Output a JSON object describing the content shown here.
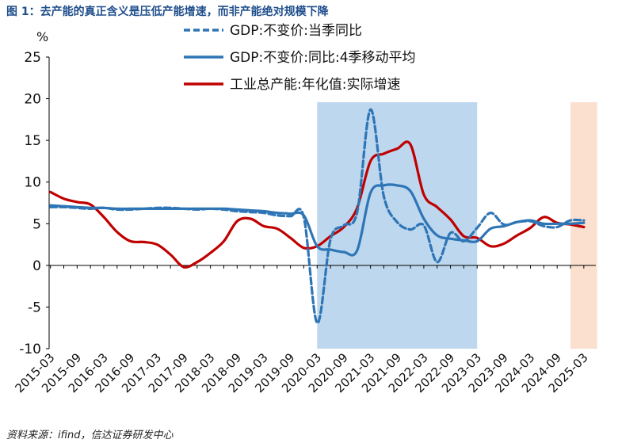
{
  "title": "图 1：去产能的真正含义是压低产能增速，而非产能绝对规模下降",
  "source": "资料来源：ifind，信达证券研发中心",
  "chart_data": {
    "type": "line",
    "ylabel": "%",
    "xlabel": "",
    "ylim": [
      -10,
      25
    ],
    "yticks": [
      -10,
      -5,
      0,
      5,
      10,
      15,
      20,
      25
    ],
    "grid": false,
    "legend_position": "top-center",
    "x_start": "2015-03",
    "x_end": "2025-03",
    "x_tick_labels": [
      "2015-03",
      "2015-09",
      "2016-03",
      "2016-09",
      "2017-03",
      "2017-09",
      "2018-03",
      "2018-09",
      "2019-03",
      "2019-09",
      "2020-03",
      "2020-09",
      "2021-03",
      "2021-09",
      "2022-03",
      "2022-09",
      "2023-03",
      "2023-09",
      "2024-03",
      "2024-09",
      "2025-03"
    ],
    "shaded_regions": [
      {
        "start": "2020-03",
        "end": "2023-03",
        "color": "#bdd7ee"
      },
      {
        "start": "2024-12",
        "end": "2025-06",
        "color": "#fbe0cf"
      }
    ],
    "series": [
      {
        "name": "GDP:不变价:当季同比",
        "style": "dashed",
        "color": "#2e75b6",
        "points": [
          [
            "2015-03",
            7.0
          ],
          [
            "2015-06",
            7.0
          ],
          [
            "2015-09",
            6.9
          ],
          [
            "2015-12",
            6.8
          ],
          [
            "2016-03",
            6.9
          ],
          [
            "2016-06",
            6.7
          ],
          [
            "2016-09",
            6.7
          ],
          [
            "2016-12",
            6.8
          ],
          [
            "2017-03",
            6.9
          ],
          [
            "2017-06",
            6.9
          ],
          [
            "2017-09",
            6.8
          ],
          [
            "2017-12",
            6.7
          ],
          [
            "2018-03",
            6.8
          ],
          [
            "2018-06",
            6.7
          ],
          [
            "2018-09",
            6.5
          ],
          [
            "2018-12",
            6.4
          ],
          [
            "2019-03",
            6.3
          ],
          [
            "2019-06",
            6.0
          ],
          [
            "2019-09",
            5.9
          ],
          [
            "2019-12",
            5.8
          ],
          [
            "2020-03",
            -6.9
          ],
          [
            "2020-06",
            3.1
          ],
          [
            "2020-09",
            4.8
          ],
          [
            "2020-12",
            6.4
          ],
          [
            "2021-03",
            18.7
          ],
          [
            "2021-06",
            8.3
          ],
          [
            "2021-09",
            5.2
          ],
          [
            "2021-12",
            4.3
          ],
          [
            "2022-03",
            4.8
          ],
          [
            "2022-06",
            0.4
          ],
          [
            "2022-09",
            3.9
          ],
          [
            "2022-12",
            2.9
          ],
          [
            "2023-03",
            4.5
          ],
          [
            "2023-06",
            6.3
          ],
          [
            "2023-09",
            4.9
          ],
          [
            "2023-12",
            5.2
          ],
          [
            "2024-03",
            5.3
          ],
          [
            "2024-06",
            4.7
          ],
          [
            "2024-09",
            4.6
          ],
          [
            "2024-12",
            5.4
          ],
          [
            "2025-03",
            5.4
          ]
        ]
      },
      {
        "name": "GDP:不变价:同比:4季移动平均",
        "style": "solid",
        "color": "#2e75b6",
        "points": [
          [
            "2015-03",
            7.2
          ],
          [
            "2015-06",
            7.1
          ],
          [
            "2015-09",
            7.0
          ],
          [
            "2015-12",
            6.9
          ],
          [
            "2016-03",
            6.9
          ],
          [
            "2016-06",
            6.8
          ],
          [
            "2016-09",
            6.8
          ],
          [
            "2016-12",
            6.8
          ],
          [
            "2017-03",
            6.8
          ],
          [
            "2017-06",
            6.8
          ],
          [
            "2017-09",
            6.8
          ],
          [
            "2017-12",
            6.8
          ],
          [
            "2018-03",
            6.8
          ],
          [
            "2018-06",
            6.8
          ],
          [
            "2018-09",
            6.7
          ],
          [
            "2018-12",
            6.6
          ],
          [
            "2019-03",
            6.5
          ],
          [
            "2019-06",
            6.3
          ],
          [
            "2019-09",
            6.2
          ],
          [
            "2019-12",
            6.0
          ],
          [
            "2020-03",
            2.3
          ],
          [
            "2020-06",
            1.9
          ],
          [
            "2020-09",
            1.6
          ],
          [
            "2020-12",
            1.8
          ],
          [
            "2021-03",
            8.7
          ],
          [
            "2021-06",
            9.6
          ],
          [
            "2021-09",
            9.6
          ],
          [
            "2021-12",
            8.9
          ],
          [
            "2022-03",
            5.6
          ],
          [
            "2022-06",
            3.6
          ],
          [
            "2022-09",
            3.2
          ],
          [
            "2022-12",
            3.0
          ],
          [
            "2023-03",
            2.9
          ],
          [
            "2023-06",
            4.4
          ],
          [
            "2023-09",
            4.7
          ],
          [
            "2023-12",
            5.2
          ],
          [
            "2024-03",
            5.4
          ],
          [
            "2024-06",
            5.0
          ],
          [
            "2024-09",
            5.0
          ],
          [
            "2024-12",
            5.0
          ],
          [
            "2025-03",
            5.1
          ]
        ]
      },
      {
        "name": "工业总产能:年化值:实际增速",
        "style": "solid",
        "color": "#c00000",
        "points": [
          [
            "2015-03",
            8.8
          ],
          [
            "2015-06",
            8.0
          ],
          [
            "2015-09",
            7.6
          ],
          [
            "2015-12",
            7.3
          ],
          [
            "2016-03",
            5.8
          ],
          [
            "2016-06",
            4.0
          ],
          [
            "2016-09",
            2.9
          ],
          [
            "2016-12",
            2.8
          ],
          [
            "2017-03",
            2.5
          ],
          [
            "2017-06",
            1.3
          ],
          [
            "2017-09",
            -0.2
          ],
          [
            "2017-12",
            0.4
          ],
          [
            "2018-03",
            1.5
          ],
          [
            "2018-06",
            2.9
          ],
          [
            "2018-09",
            5.3
          ],
          [
            "2018-12",
            5.6
          ],
          [
            "2019-03",
            4.7
          ],
          [
            "2019-06",
            4.4
          ],
          [
            "2019-09",
            3.3
          ],
          [
            "2019-12",
            2.1
          ],
          [
            "2020-03",
            2.3
          ],
          [
            "2020-06",
            3.5
          ],
          [
            "2020-09",
            4.6
          ],
          [
            "2020-12",
            6.9
          ],
          [
            "2021-03",
            12.5
          ],
          [
            "2021-06",
            13.4
          ],
          [
            "2021-09",
            14.0
          ],
          [
            "2021-12",
            14.5
          ],
          [
            "2022-03",
            8.5
          ],
          [
            "2022-06",
            7.0
          ],
          [
            "2022-09",
            5.5
          ],
          [
            "2022-12",
            3.5
          ],
          [
            "2023-03",
            3.3
          ],
          [
            "2023-06",
            2.3
          ],
          [
            "2023-09",
            2.6
          ],
          [
            "2023-12",
            3.6
          ],
          [
            "2024-03",
            4.5
          ],
          [
            "2024-06",
            5.8
          ],
          [
            "2024-09",
            5.1
          ],
          [
            "2024-12",
            4.9
          ],
          [
            "2025-03",
            4.6
          ]
        ]
      }
    ]
  }
}
